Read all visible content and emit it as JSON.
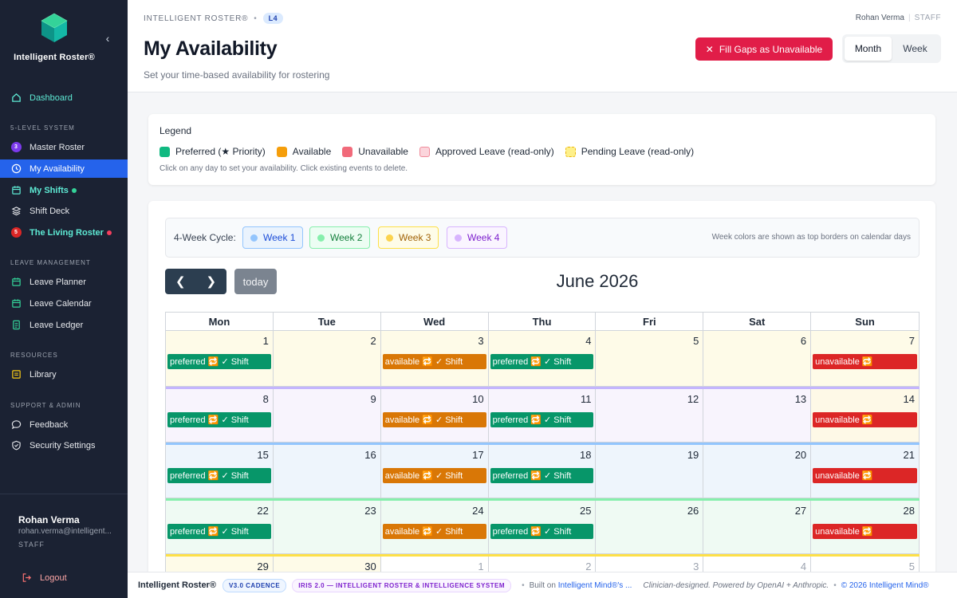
{
  "sidebar": {
    "brand": "Intelligent Roster®",
    "dashboard": "Dashboard",
    "section_5level": "5-LEVEL SYSTEM",
    "master_roster": {
      "badge": "3",
      "label": "Master Roster"
    },
    "my_availability": "My Availability",
    "my_shifts": "My Shifts",
    "shift_deck": "Shift Deck",
    "living_roster": {
      "badge": "5",
      "label": "The Living Roster"
    },
    "section_leave": "LEAVE MANAGEMENT",
    "leave_planner": "Leave Planner",
    "leave_calendar": "Leave Calendar",
    "leave_ledger": "Leave Ledger",
    "section_resources": "RESOURCES",
    "library": "Library",
    "section_support": "SUPPORT & ADMIN",
    "feedback": "Feedback",
    "security_settings": "Security Settings",
    "user": {
      "name": "Rohan Verma",
      "email": "rohan.verma@intelligent...",
      "role": "STAFF"
    },
    "logout": "Logout"
  },
  "header": {
    "breadcrumb": "INTELLIGENT ROSTER®",
    "level_badge": "L4",
    "user_name": "Rohan Verma",
    "user_role": "STAFF",
    "title": "My Availability",
    "subtitle": "Set your time-based availability for rostering",
    "fill_gaps_button": "Fill Gaps as Unavailable",
    "view_month": "Month",
    "view_week": "Week"
  },
  "legend": {
    "title": "Legend",
    "items": [
      {
        "label": "Preferred (★ Priority)",
        "color": "#10b981"
      },
      {
        "label": "Available",
        "color": "#f59e0b"
      },
      {
        "label": "Unavailable",
        "color": "#f16a7a"
      },
      {
        "label": "Approved Leave (read-only)",
        "color": "#fbd5dc"
      },
      {
        "label": "Pending Leave (read-only)",
        "color": "#fef08a"
      }
    ],
    "note": "Click on any day to set your availability. Click existing events to delete."
  },
  "cycle": {
    "label": "4-Week Cycle:",
    "weeks": [
      {
        "label": "Week 1",
        "bg": "#eaf3fd",
        "border": "#93c5fd",
        "dot": "#93c5fd",
        "text": "#1d4ed8"
      },
      {
        "label": "Week 2",
        "bg": "#ecfdf3",
        "border": "#86efac",
        "dot": "#86efac",
        "text": "#15803d"
      },
      {
        "label": "Week 3",
        "bg": "#fefce8",
        "border": "#fde047",
        "dot": "#fcd34d",
        "text": "#a16207"
      },
      {
        "label": "Week 4",
        "bg": "#faf5ff",
        "border": "#d8b4fe",
        "dot": "#d8b4fe",
        "text": "#7e22ce"
      }
    ],
    "note": "Week colors are shown as top borders on calendar days"
  },
  "calendar": {
    "today_button": "today",
    "title": "June 2026",
    "days_of_week": [
      "Mon",
      "Tue",
      "Wed",
      "Thu",
      "Fri",
      "Sat",
      "Sun"
    ],
    "event_colors": {
      "preferred": "#079669",
      "available": "#d97706",
      "unavailable": "#dc2626"
    },
    "weeks": [
      {
        "bg": "#fefbe8",
        "border": "#fef3c7",
        "days": [
          {
            "num": "1",
            "event": "preferred",
            "text": "preferred 🔁 ✓ Shift"
          },
          {
            "num": "2"
          },
          {
            "num": "3",
            "event": "available",
            "text": "available 🔁 ✓ Shift"
          },
          {
            "num": "4",
            "event": "preferred",
            "text": "preferred 🔁 ✓ Shift"
          },
          {
            "num": "5"
          },
          {
            "num": "6"
          },
          {
            "num": "7",
            "event": "unavailable",
            "text": "unavailable 🔁"
          }
        ]
      },
      {
        "bg": "#f8f4fd",
        "border": "#c4b5fd",
        "days": [
          {
            "num": "8",
            "event": "preferred",
            "text": "preferred 🔁 ✓ Shift"
          },
          {
            "num": "9"
          },
          {
            "num": "10",
            "event": "available",
            "text": "available 🔁 ✓ Shift"
          },
          {
            "num": "11",
            "event": "preferred",
            "text": "preferred 🔁 ✓ Shift"
          },
          {
            "num": "12"
          },
          {
            "num": "13"
          },
          {
            "num": "14",
            "event": "unavailable",
            "text": "unavailable 🔁",
            "highlight": "#fef9e7"
          }
        ]
      },
      {
        "bg": "#eef5fc",
        "border": "#93c5fd",
        "days": [
          {
            "num": "15",
            "event": "preferred",
            "text": "preferred 🔁 ✓ Shift"
          },
          {
            "num": "16"
          },
          {
            "num": "17",
            "event": "available",
            "text": "available 🔁 ✓ Shift"
          },
          {
            "num": "18",
            "event": "preferred",
            "text": "preferred 🔁 ✓ Shift"
          },
          {
            "num": "19"
          },
          {
            "num": "20"
          },
          {
            "num": "21",
            "event": "unavailable",
            "text": "unavailable 🔁"
          }
        ]
      },
      {
        "bg": "#effaf3",
        "border": "#86efac",
        "days": [
          {
            "num": "22",
            "event": "preferred",
            "text": "preferred 🔁 ✓ Shift"
          },
          {
            "num": "23"
          },
          {
            "num": "24",
            "event": "available",
            "text": "available 🔁 ✓ Shift"
          },
          {
            "num": "25",
            "event": "preferred",
            "text": "preferred 🔁 ✓ Shift"
          },
          {
            "num": "26"
          },
          {
            "num": "27"
          },
          {
            "num": "28",
            "event": "unavailable",
            "text": "unavailable 🔁"
          }
        ]
      },
      {
        "bg": "#fefbe8",
        "border": "#fde047",
        "days": [
          {
            "num": "29"
          },
          {
            "num": "30"
          },
          {
            "num": "1",
            "other": true
          },
          {
            "num": "2",
            "other": true
          },
          {
            "num": "3",
            "other": true
          },
          {
            "num": "4",
            "other": true
          },
          {
            "num": "5",
            "other": true
          }
        ]
      }
    ]
  },
  "footer": {
    "brand": "Intelligent Roster®",
    "badge1": "V3.0 CADENCE",
    "badge2": "IRIS 2.0 — INTELLIGENT ROSTER & INTELLIGENCE SYSTEM",
    "built_on": "Built on",
    "built_link": "Intelligent Mind®'s ...",
    "clinician": "Clinician-designed. Powered by OpenAI + Anthropic.",
    "copyright": "© 2026 Intelligent Mind®"
  }
}
